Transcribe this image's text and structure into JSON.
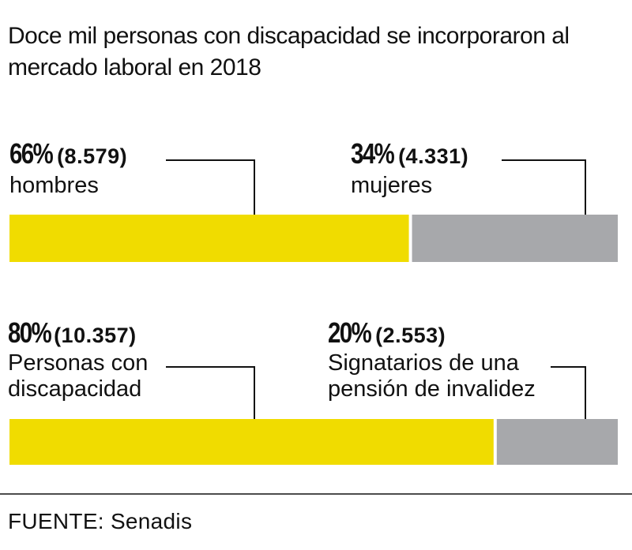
{
  "title": "Doce mil personas con discapacidad se incorporaron al mercado laboral en 2018",
  "source": "FUENTE: Senadis",
  "colors": {
    "primary": "#f0dc00",
    "secondary": "#a7a8ab",
    "line": "#111111"
  },
  "chart_data": [
    {
      "type": "bar",
      "orientation": "horizontal-stacked",
      "segments": [
        {
          "percent": 66,
          "percent_label": "66%",
          "count_label": "(8.579)",
          "name": "hombres",
          "color": "#f0dc00"
        },
        {
          "percent": 34,
          "percent_label": "34%",
          "count_label": "(4.331)",
          "name": "mujeres",
          "color": "#a7a8ab"
        }
      ]
    },
    {
      "type": "bar",
      "orientation": "horizontal-stacked",
      "segments": [
        {
          "percent": 80,
          "percent_label": "80%",
          "count_label": "(10.357)",
          "name": "Personas con discapacidad",
          "color": "#f0dc00"
        },
        {
          "percent": 20,
          "percent_label": "20%",
          "count_label": "(2.553)",
          "name": "Signatarios de una pensión de invalidez",
          "color": "#a7a8ab"
        }
      ]
    }
  ]
}
